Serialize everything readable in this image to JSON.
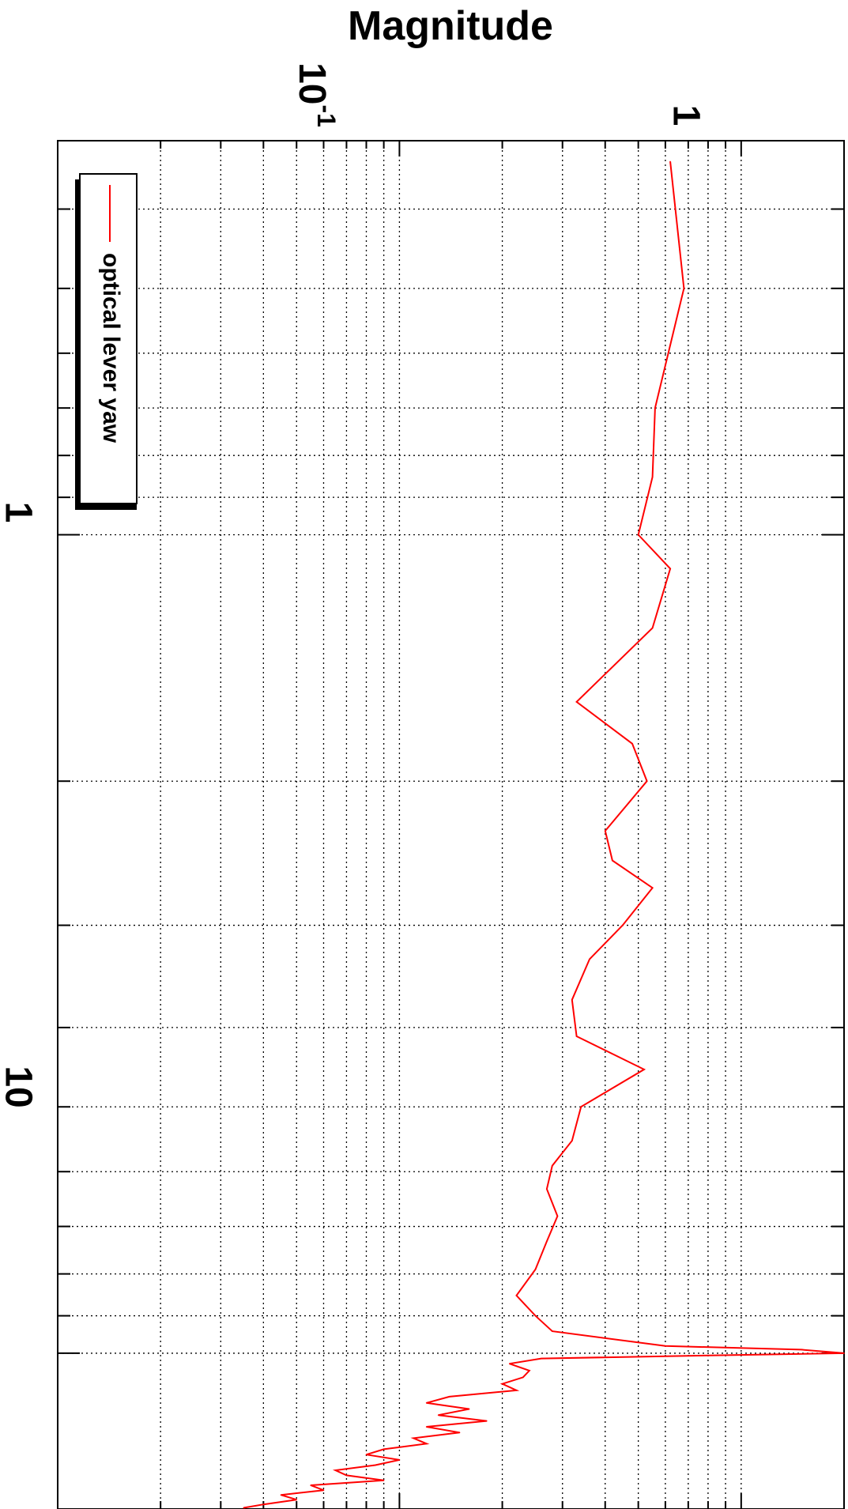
{
  "chart_data": {
    "type": "line",
    "orientation": "rotated-90-clockwise",
    "title": "Magnitude",
    "magnitude_axis": {
      "scale": "log",
      "range": [
        0.01,
        2.0
      ],
      "tick_labels": [
        {
          "value": 0.1,
          "base": "10",
          "exponent": "-1"
        },
        {
          "value": 1,
          "text": "1"
        }
      ]
    },
    "frequency_axis": {
      "scale": "log",
      "range": [
        0.33,
        15.5
      ],
      "tick_labels": [
        {
          "value": 1,
          "text": "1"
        },
        {
          "value": 10,
          "text": "10"
        }
      ]
    },
    "grid": true,
    "legend": {
      "position": "top-left",
      "entries": [
        "optical lever yaw"
      ]
    },
    "series": [
      {
        "name": "optical lever yaw",
        "color": "#ff0000",
        "x": [
          0.35,
          0.5,
          0.7,
          0.85,
          1.0,
          1.1,
          1.3,
          1.6,
          1.8,
          2.0,
          2.3,
          2.5,
          2.7,
          3.0,
          3.3,
          3.7,
          4.1,
          4.5,
          5.0,
          5.5,
          5.9,
          6.3,
          6.8,
          7.3,
          7.9,
          8.5,
          9.0,
          9.4,
          9.8,
          9.9,
          10.0,
          10.05,
          10.15,
          10.3,
          10.5,
          10.7,
          10.9,
          11.1,
          11.3,
          11.5,
          11.7,
          11.9,
          12.1,
          12.3,
          12.5,
          12.7,
          12.9,
          13.1,
          13.3,
          13.5,
          13.7,
          13.9,
          14.1,
          14.3,
          14.5,
          14.7,
          14.9,
          15.1,
          15.3,
          15.45
        ],
        "y": [
          0.62,
          0.68,
          0.56,
          0.55,
          0.5,
          0.62,
          0.55,
          0.33,
          0.48,
          0.53,
          0.4,
          0.42,
          0.55,
          0.45,
          0.36,
          0.32,
          0.33,
          0.52,
          0.34,
          0.32,
          0.28,
          0.27,
          0.29,
          0.27,
          0.25,
          0.22,
          0.25,
          0.28,
          0.6,
          1.5,
          2.0,
          0.95,
          0.26,
          0.21,
          0.24,
          0.23,
          0.2,
          0.22,
          0.14,
          0.12,
          0.16,
          0.13,
          0.18,
          0.12,
          0.15,
          0.11,
          0.12,
          0.09,
          0.08,
          0.1,
          0.085,
          0.065,
          0.07,
          0.09,
          0.055,
          0.06,
          0.045,
          0.05,
          0.04,
          0.035
        ]
      }
    ]
  }
}
